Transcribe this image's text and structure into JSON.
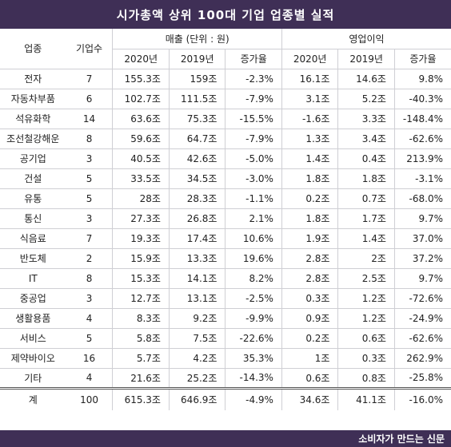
{
  "title": "시가총액 상위 100대 기업 업종별 실적",
  "header": {
    "industry": "업종",
    "count": "기업수",
    "sales_group": "매출 (단위 : 원)",
    "op_group": "영업이익",
    "y2020": "2020년",
    "y2019": "2019년",
    "growth": "증가율"
  },
  "rows": [
    [
      "전자",
      "7",
      "155.3조",
      "159조",
      "-2.3%",
      "16.1조",
      "14.6조",
      "9.8%"
    ],
    [
      "자동차부품",
      "6",
      "102.7조",
      "111.5조",
      "-7.9%",
      "3.1조",
      "5.2조",
      "-40.3%"
    ],
    [
      "석유화학",
      "14",
      "63.6조",
      "75.3조",
      "-15.5%",
      "-1.6조",
      "3.3조",
      "-148.4%"
    ],
    [
      "조선철강해운",
      "8",
      "59.6조",
      "64.7조",
      "-7.9%",
      "1.3조",
      "3.4조",
      "-62.6%"
    ],
    [
      "공기업",
      "3",
      "40.5조",
      "42.6조",
      "-5.0%",
      "1.4조",
      "0.4조",
      "213.9%"
    ],
    [
      "건설",
      "5",
      "33.5조",
      "34.5조",
      "-3.0%",
      "1.8조",
      "1.8조",
      "-3.1%"
    ],
    [
      "유통",
      "5",
      "28조",
      "28.3조",
      "-1.1%",
      "0.2조",
      "0.7조",
      "-68.0%"
    ],
    [
      "통신",
      "3",
      "27.3조",
      "26.8조",
      "2.1%",
      "1.8조",
      "1.7조",
      "9.7%"
    ],
    [
      "식음료",
      "7",
      "19.3조",
      "17.4조",
      "10.6%",
      "1.9조",
      "1.4조",
      "37.0%"
    ],
    [
      "반도체",
      "2",
      "15.9조",
      "13.3조",
      "19.6%",
      "2.8조",
      "2조",
      "37.2%"
    ],
    [
      "IT",
      "8",
      "15.3조",
      "14.1조",
      "8.2%",
      "2.8조",
      "2.5조",
      "9.7%"
    ],
    [
      "중공업",
      "3",
      "12.7조",
      "13.1조",
      "-2.5%",
      "0.3조",
      "1.2조",
      "-72.6%"
    ],
    [
      "생활용품",
      "4",
      "8.3조",
      "9.2조",
      "-9.9%",
      "0.9조",
      "1.2조",
      "-24.9%"
    ],
    [
      "서비스",
      "5",
      "5.8조",
      "7.5조",
      "-22.6%",
      "0.2조",
      "0.6조",
      "-62.6%"
    ],
    [
      "제약바이오",
      "16",
      "5.7조",
      "4.2조",
      "35.3%",
      "1조",
      "0.3조",
      "262.9%"
    ],
    [
      "기타",
      "4",
      "21.6조",
      "25.2조",
      "-14.3%",
      "0.6조",
      "0.8조",
      "-25.8%"
    ]
  ],
  "total": [
    "계",
    "100",
    "615.3조",
    "646.9조",
    "-4.9%",
    "34.6조",
    "41.1조",
    "-16.0%"
  ],
  "footer": "소비자가 만드는 신문",
  "colors": {
    "brand": "#3f2f56",
    "text": "#222222",
    "rule": "#cfcfd4"
  }
}
